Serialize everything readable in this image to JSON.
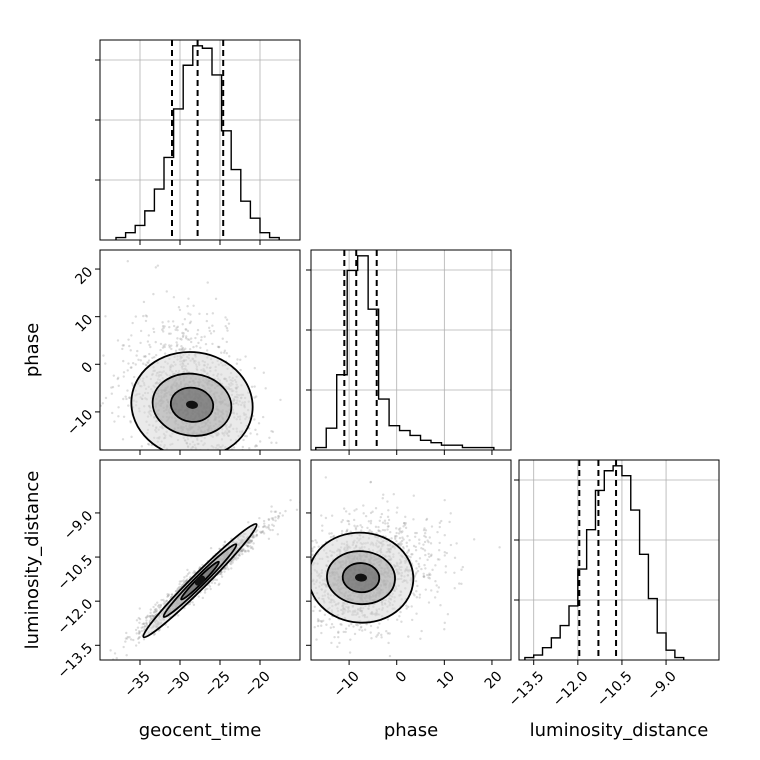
{
  "chart_data": {
    "type": "corner",
    "parameters": [
      "geocent_time",
      "phase",
      "luminosity_distance"
    ],
    "axis_labels": {
      "geocent_time": "geocent_time",
      "phase": "phase",
      "luminosity_distance": "luminosity_distance"
    },
    "ranges": {
      "geocent_time": [
        -40,
        -15
      ],
      "phase": [
        -18,
        24
      ],
      "luminosity_distance": [
        -14,
        -7.2
      ]
    },
    "ticks": {
      "geocent_time": {
        "values": [
          -35,
          -30,
          -25,
          -20
        ],
        "labels": [
          "−35",
          "−30",
          "−25",
          "−20"
        ]
      },
      "phase": {
        "values": [
          -10,
          0,
          10,
          20
        ],
        "labels": [
          "−10",
          "0",
          "10",
          "20"
        ]
      },
      "luminosity_distance": {
        "values": [
          -13.5,
          -12.0,
          -10.5,
          -9.0
        ],
        "labels": [
          "−13.5",
          "−12.0",
          "−10.5",
          "−9.0"
        ]
      }
    },
    "quantiles": {
      "geocent_time": [
        -31,
        -27.8,
        -24.6
      ],
      "phase": [
        -11,
        -8.5,
        -4.2
      ],
      "luminosity_distance": [
        -11.95,
        -11.3,
        -10.7
      ]
    },
    "histograms": {
      "geocent_time": {
        "edges": [
          -38,
          -36.8,
          -35.6,
          -34.4,
          -33.2,
          -32,
          -30.8,
          -29.6,
          -28.4,
          -27.2,
          -26,
          -24.8,
          -23.6,
          -22.4,
          -21.2,
          -20,
          -18.8,
          -17.6
        ],
        "counts": [
          1,
          3,
          6,
          12,
          21,
          34,
          54,
          72,
          80,
          79,
          68,
          45,
          29,
          16,
          9,
          3,
          1
        ]
      },
      "phase": {
        "edges": [
          -17,
          -14.8,
          -12.6,
          -10.4,
          -8.2,
          -6,
          -3.8,
          -1.6,
          0.6,
          2.8,
          5,
          7.2,
          9.4,
          11.6,
          13.8,
          16,
          18.2,
          20.4
        ],
        "counts": [
          1,
          9,
          31,
          74,
          80,
          58,
          21,
          10,
          8,
          6,
          4,
          3,
          2,
          2,
          1,
          1,
          1
        ]
      },
      "luminosity_distance": {
        "edges": [
          -13.8,
          -13.5,
          -13.2,
          -12.9,
          -12.6,
          -12.3,
          -12.0,
          -11.7,
          -11.4,
          -11.1,
          -10.8,
          -10.5,
          -10.2,
          -9.9,
          -9.6,
          -9.3,
          -9.0,
          -8.7,
          -8.4
        ],
        "counts": [
          1,
          2,
          5,
          9,
          14,
          22,
          37,
          53,
          69,
          77,
          79,
          75,
          61,
          43,
          25,
          11,
          4,
          1
        ]
      }
    },
    "scatter": {
      "phase_vs_geocent_time": {
        "mean": [
          -28.5,
          -8.5
        ],
        "std": [
          3.8,
          6.5
        ],
        "corr": -0.35
      },
      "luminosity_distance_vs_geocent_time": {
        "mean": [
          -27.5,
          -11.3
        ],
        "std": [
          3.8,
          0.9
        ],
        "corr": 0.97
      },
      "luminosity_distance_vs_phase": {
        "mean": [
          -7.5,
          -11.2
        ],
        "std": [
          5.5,
          0.9
        ],
        "corr": 0.1
      }
    },
    "grid": true
  }
}
